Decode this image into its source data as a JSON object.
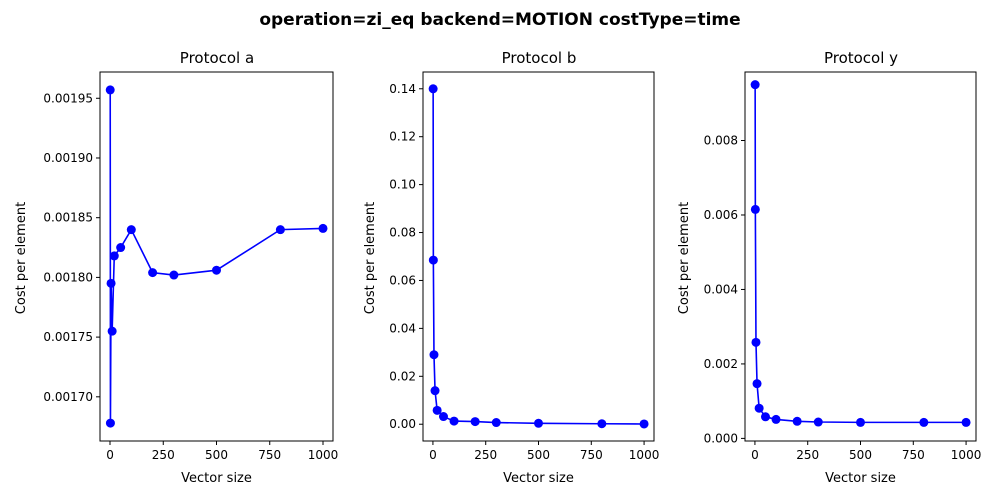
{
  "figure_title": "operation=zi_eq backend=MOTION costType=time",
  "colors": {
    "series": "#0000ff",
    "axes": "#000000",
    "background": "#ffffff"
  },
  "chart_data": [
    {
      "type": "line",
      "title": "Protocol a",
      "xlabel": "Vector size",
      "ylabel": "Cost per element",
      "xlim": [
        -47,
        1047
      ],
      "ylim": [
        0.001663,
        0.001972
      ],
      "xticks": [
        0,
        250,
        500,
        750,
        1000
      ],
      "xtick_labels": [
        "0",
        "250",
        "500",
        "750",
        "1000"
      ],
      "yticks": [
        0.0017,
        0.00175,
        0.0018,
        0.00185,
        0.0019,
        0.00195
      ],
      "ytick_labels": [
        "0.00170",
        "0.00175",
        "0.00180",
        "0.00185",
        "0.00190",
        "0.00195"
      ],
      "grid": false,
      "marker": "circle",
      "x": [
        1,
        2,
        5,
        10,
        20,
        50,
        100,
        200,
        300,
        500,
        800,
        1000
      ],
      "y": [
        0.001957,
        0.001678,
        0.001795,
        0.001755,
        0.001818,
        0.001825,
        0.00184,
        0.001804,
        0.001802,
        0.001806,
        0.00184,
        0.001841
      ]
    },
    {
      "type": "line",
      "title": "Protocol b",
      "xlabel": "Vector size",
      "ylabel": "Cost per element",
      "xlim": [
        -47,
        1047
      ],
      "ylim": [
        -0.007,
        0.147
      ],
      "xticks": [
        0,
        250,
        500,
        750,
        1000
      ],
      "xtick_labels": [
        "0",
        "250",
        "500",
        "750",
        "1000"
      ],
      "yticks": [
        0,
        0.02,
        0.04,
        0.06,
        0.08,
        0.1,
        0.12,
        0.14
      ],
      "ytick_labels": [
        "0.00",
        "0.02",
        "0.04",
        "0.06",
        "0.08",
        "0.10",
        "0.12",
        "0.14"
      ],
      "grid": false,
      "marker": "circle",
      "x": [
        1,
        2,
        5,
        10,
        20,
        50,
        100,
        200,
        300,
        500,
        800,
        1000
      ],
      "y": [
        0.14,
        0.0685,
        0.029,
        0.014,
        0.0058,
        0.0032,
        0.0013,
        0.0011,
        0.0007,
        0.0004,
        0.0002,
        0.0001
      ]
    },
    {
      "type": "line",
      "title": "Protocol y",
      "xlabel": "Vector size",
      "ylabel": "Cost per element",
      "xlim": [
        -47,
        1047
      ],
      "ylim": [
        -7e-05,
        0.00984
      ],
      "xticks": [
        0,
        250,
        500,
        750,
        1000
      ],
      "xtick_labels": [
        "0",
        "250",
        "500",
        "750",
        "1000"
      ],
      "yticks": [
        0,
        0.002,
        0.004,
        0.006,
        0.008
      ],
      "ytick_labels": [
        "0.000",
        "0.002",
        "0.004",
        "0.006",
        "0.008"
      ],
      "grid": false,
      "marker": "circle",
      "x": [
        1,
        2,
        5,
        10,
        20,
        50,
        100,
        200,
        300,
        500,
        800,
        1000
      ],
      "y": [
        0.0095,
        0.00615,
        0.00258,
        0.00147,
        0.00081,
        0.00058,
        0.00051,
        0.00046,
        0.00044,
        0.00043,
        0.00043,
        0.00043
      ]
    }
  ]
}
